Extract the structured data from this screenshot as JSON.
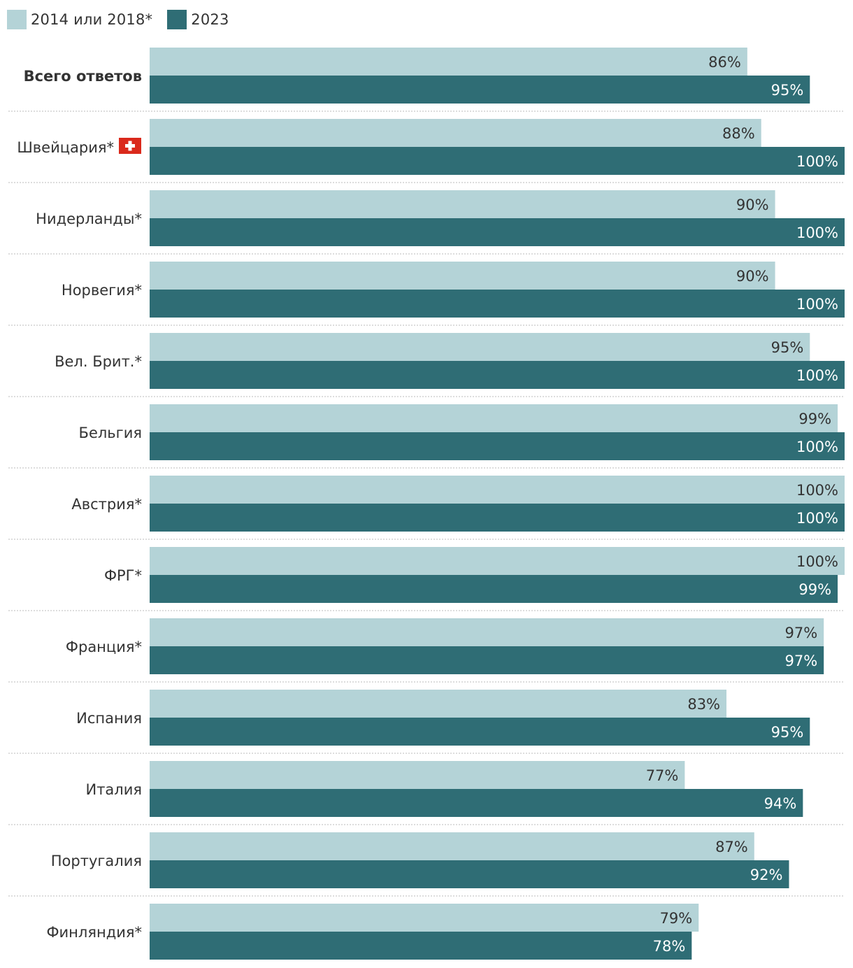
{
  "legend": {
    "series_1": "2014 или 2018*",
    "series_2": "2023"
  },
  "colors": {
    "series_1": "#b4d3d7",
    "series_2": "#2f6d75",
    "flag": "#da291c"
  },
  "chart_data": {
    "type": "bar",
    "orientation": "horizontal",
    "title": "",
    "xlabel": "",
    "ylabel": "",
    "xlim": [
      0,
      100
    ],
    "grid": false,
    "legend_position": "top-left",
    "value_suffix": "%",
    "categories": [
      "Всего ответов",
      "Швейцария*",
      "Нидерланды*",
      "Норвегия*",
      "Вел. Брит.*",
      "Бельгия",
      "Австрия*",
      "ФРГ*",
      "Франция*",
      "Испания",
      "Италия",
      "Португалия",
      "Финляндия*"
    ],
    "series": [
      {
        "name": "2014 или 2018*",
        "values": [
          86,
          88,
          90,
          90,
          95,
          99,
          100,
          100,
          97,
          83,
          77,
          87,
          79
        ]
      },
      {
        "name": "2023",
        "values": [
          95,
          100,
          100,
          100,
          100,
          100,
          100,
          99,
          97,
          95,
          94,
          92,
          78
        ]
      }
    ]
  }
}
